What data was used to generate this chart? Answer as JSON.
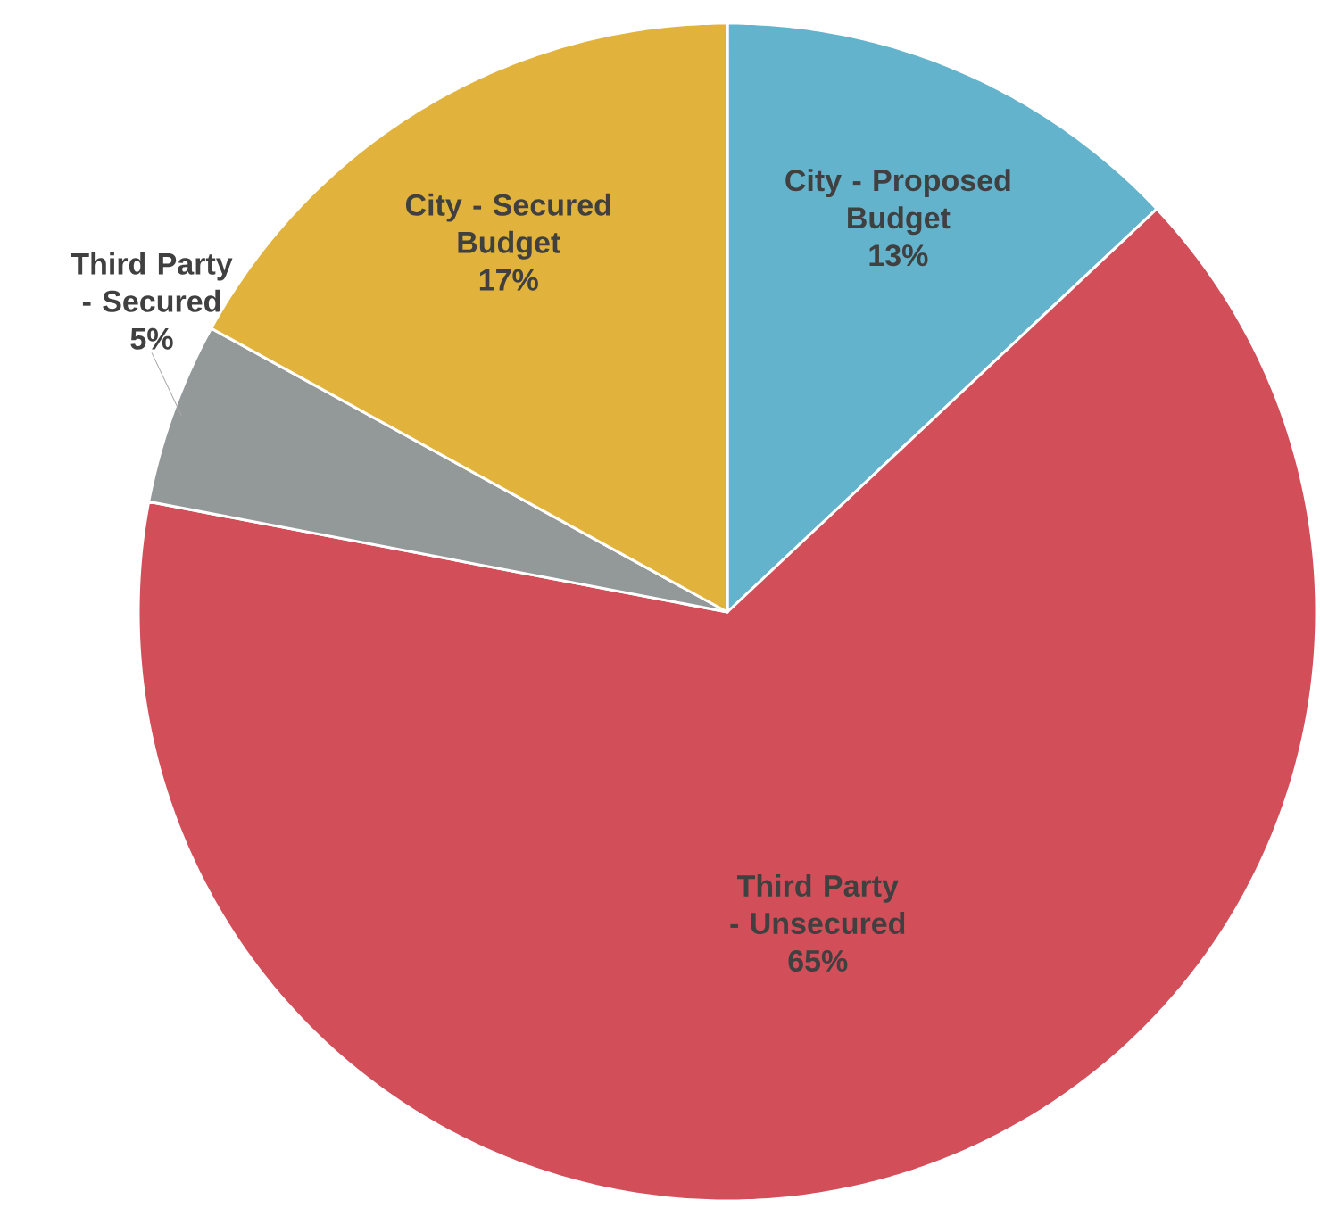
{
  "chart_data": {
    "type": "pie",
    "categories": [
      "City - Proposed Budget",
      "Third Party - Unsecured",
      "Third Party - Secured",
      "City - Secured Budget"
    ],
    "values": [
      13,
      65,
      5,
      17
    ],
    "value_labels": [
      "13%",
      "65%",
      "5%",
      "17%"
    ],
    "colors": [
      "#64b3cc",
      "#d24f5a",
      "#939899",
      "#e2b33c"
    ]
  }
}
